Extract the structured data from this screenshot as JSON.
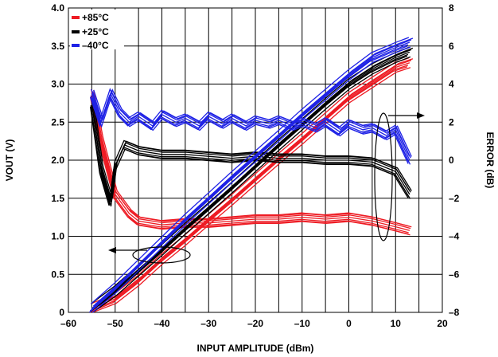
{
  "chart_data": {
    "type": "line",
    "title": "",
    "xlabel": "INPUT AMPLITUDE (dBm)",
    "ylabel": "VOUT (V)",
    "y2label": "ERROR (dB)",
    "xlim": [
      -60,
      20
    ],
    "ylim": [
      0,
      4.0
    ],
    "y2lim": [
      -8,
      8
    ],
    "x_ticks": [
      "–60",
      "–50",
      "–40",
      "–30",
      "–20",
      "–10",
      "0",
      "10",
      "20"
    ],
    "y_ticks": [
      "0",
      "0.5",
      "1.0",
      "1.5",
      "2.0",
      "2.5",
      "3.0",
      "3.5",
      "4.0"
    ],
    "y2_ticks": [
      "–8",
      "–6",
      "–4",
      "–2",
      "0",
      "2",
      "4",
      "6",
      "8"
    ],
    "grid": true,
    "legend_position": "top-left",
    "series": [
      {
        "name": "+85°C",
        "color": "#ee1c24",
        "vout": {
          "x": [
            -55,
            -50,
            -45,
            -40,
            -35,
            -30,
            -25,
            -20,
            -15,
            -10,
            -5,
            0,
            5,
            10,
            13
          ],
          "y": [
            0.05,
            0.18,
            0.42,
            0.7,
            0.95,
            1.22,
            1.48,
            1.75,
            2.02,
            2.28,
            2.55,
            2.82,
            3.02,
            3.22,
            3.28
          ]
        },
        "error": {
          "x": [
            -55,
            -53,
            -50,
            -47,
            -45,
            -40,
            -35,
            -30,
            -25,
            -20,
            -15,
            -10,
            -5,
            0,
            5,
            10,
            13
          ],
          "y": [
            3.5,
            1.0,
            -1.8,
            -2.8,
            -3.2,
            -3.4,
            -3.3,
            -3.3,
            -3.2,
            -3.1,
            -3.1,
            -3.0,
            -3.1,
            -3.0,
            -3.2,
            -3.5,
            -3.7
          ]
        }
      },
      {
        "name": "+25°C",
        "color": "#000000",
        "vout": {
          "x": [
            -55,
            -50,
            -45,
            -40,
            -35,
            -30,
            -25,
            -20,
            -15,
            -10,
            -5,
            0,
            5,
            10,
            13
          ],
          "y": [
            0.05,
            0.28,
            0.55,
            0.82,
            1.1,
            1.37,
            1.64,
            1.92,
            2.2,
            2.47,
            2.74,
            3.0,
            3.2,
            3.35,
            3.42
          ]
        },
        "error": {
          "x": [
            -55,
            -53,
            -51,
            -50,
            -48,
            -45,
            -40,
            -35,
            -30,
            -25,
            -20,
            -15,
            -10,
            -5,
            0,
            5,
            10,
            13
          ],
          "y": [
            3.0,
            -0.5,
            -2.2,
            -0.3,
            0.8,
            0.5,
            0.3,
            0.3,
            0.2,
            0.1,
            0.2,
            0.1,
            0.1,
            0.0,
            0.0,
            -0.1,
            -0.6,
            -1.8
          ]
        }
      },
      {
        "name": "–40°C",
        "color": "#1f22e6",
        "vout": {
          "x": [
            -55,
            -50,
            -45,
            -40,
            -35,
            -30,
            -25,
            -20,
            -15,
            -10,
            -5,
            0,
            5,
            10,
            13
          ],
          "y": [
            0.05,
            0.32,
            0.62,
            0.92,
            1.22,
            1.5,
            1.78,
            2.05,
            2.32,
            2.6,
            2.86,
            3.12,
            3.35,
            3.48,
            3.55
          ]
        },
        "error": {
          "x": [
            -55,
            -53,
            -51,
            -49,
            -47,
            -45,
            -42,
            -40,
            -37,
            -35,
            -32,
            -30,
            -27,
            -25,
            -22,
            -20,
            -17,
            -15,
            -12,
            -10,
            -7,
            -5,
            -2,
            0,
            3,
            5,
            8,
            10,
            13
          ],
          "y": [
            3.5,
            2.0,
            3.5,
            2.5,
            2.0,
            2.3,
            1.8,
            2.4,
            2.0,
            2.2,
            1.8,
            2.3,
            1.9,
            2.2,
            1.8,
            2.1,
            1.9,
            2.1,
            1.8,
            2.0,
            1.7,
            2.0,
            1.5,
            1.9,
            1.6,
            1.7,
            1.3,
            1.6,
            0.0
          ]
        }
      }
    ],
    "annotations": {
      "left_arrow_ellipse": "VOUT curves refer to left axis",
      "right_arrow_ellipse": "Error curves refer to right axis"
    }
  }
}
